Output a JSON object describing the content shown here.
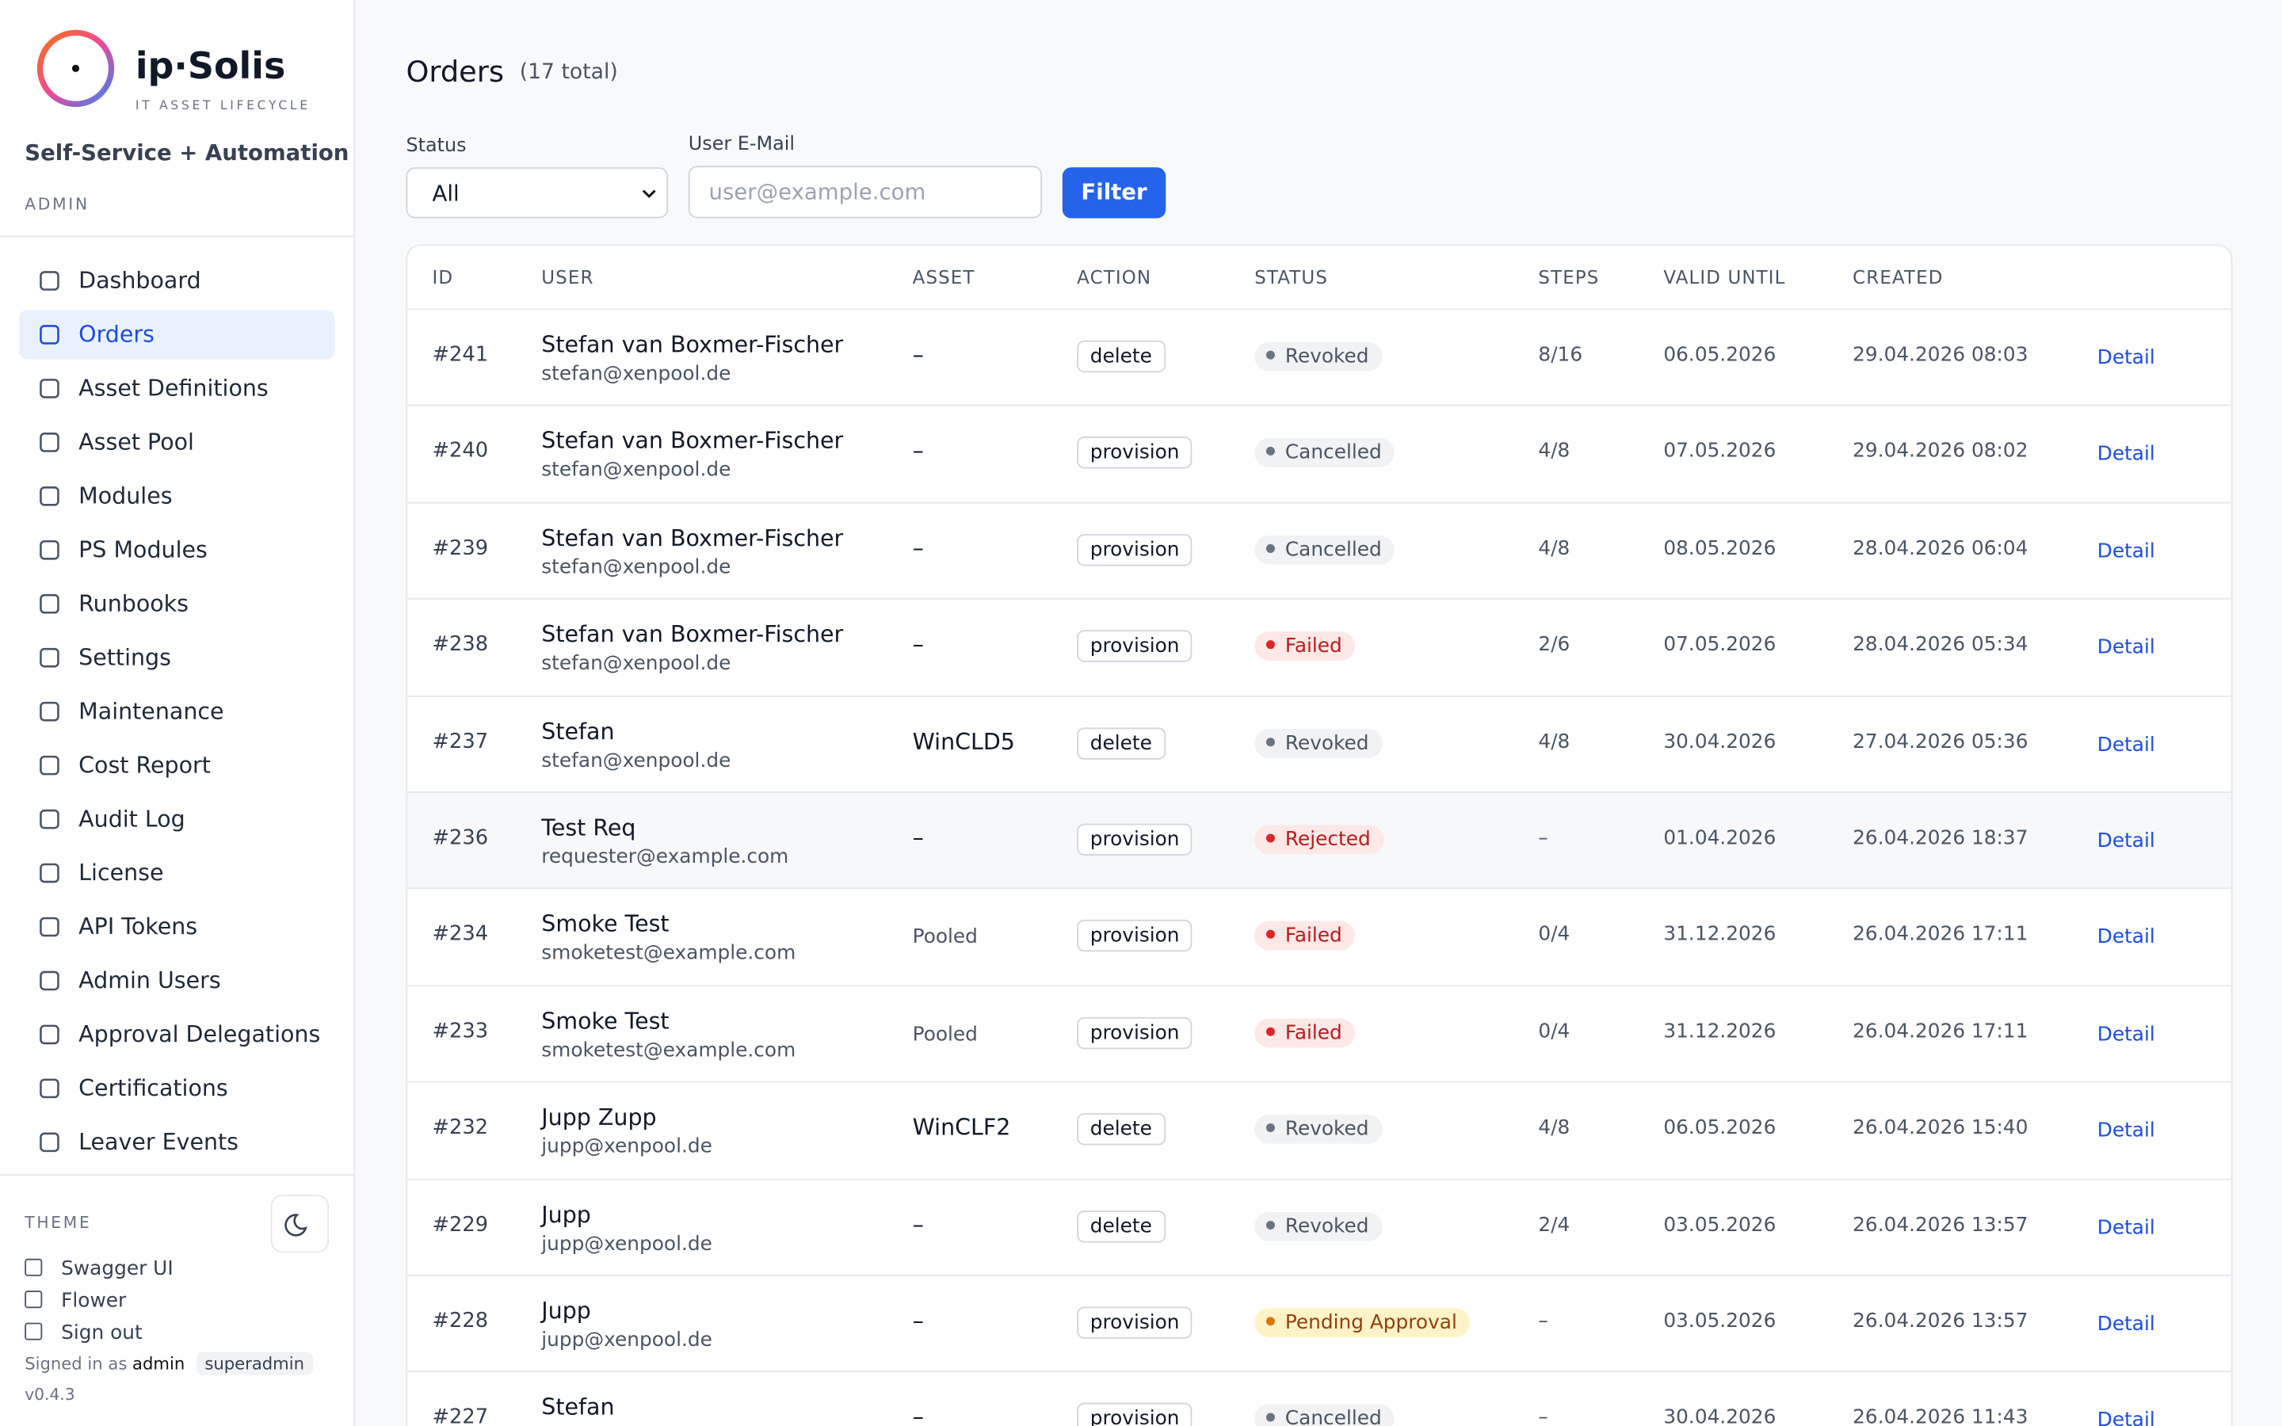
{
  "sidebar": {
    "brand": "ip·Solis",
    "tagline": "IT ASSET LIFECYCLE",
    "subtitle": "Self-Service + Automation",
    "role": "ADMIN",
    "nav": [
      {
        "label": "Dashboard",
        "active": false
      },
      {
        "label": "Orders",
        "active": true
      },
      {
        "label": "Asset Definitions",
        "active": false
      },
      {
        "label": "Asset Pool",
        "active": false
      },
      {
        "label": "Modules",
        "active": false
      },
      {
        "label": "PS Modules",
        "active": false
      },
      {
        "label": "Runbooks",
        "active": false
      },
      {
        "label": "Settings",
        "active": false
      },
      {
        "label": "Maintenance",
        "active": false
      },
      {
        "label": "Cost Report",
        "active": false
      },
      {
        "label": "Audit Log",
        "active": false
      },
      {
        "label": "License",
        "active": false
      },
      {
        "label": "API Tokens",
        "active": false
      },
      {
        "label": "Admin Users",
        "active": false
      },
      {
        "label": "Approval Delegations",
        "active": false
      },
      {
        "label": "Certifications",
        "active": false
      },
      {
        "label": "Leaver Events",
        "active": false
      }
    ],
    "theme_label": "THEME",
    "links": [
      "Swagger UI",
      "Flower",
      "Sign out"
    ],
    "signed_in": "Signed in as",
    "user": "admin",
    "user_role": "superadmin",
    "version": "v0.4.3"
  },
  "header": {
    "title": "Orders",
    "count": "(17 total)"
  },
  "filters": {
    "status_label": "Status",
    "status_value": "All",
    "email_label": "User E-Mail",
    "email_placeholder": "user@example.com",
    "button": "Filter"
  },
  "table": {
    "columns": [
      "ID",
      "USER",
      "ASSET",
      "ACTION",
      "STATUS",
      "STEPS",
      "VALID UNTIL",
      "CREATED"
    ],
    "rows": [
      {
        "id": "#241",
        "name": "Stefan van Boxmer-Fischer",
        "email": "stefan@xenpool.de",
        "asset": "–",
        "asset_muted": false,
        "action": "delete",
        "status": "Revoked",
        "tone": "gray",
        "steps": "8/16",
        "valid": "06.05.2026",
        "created": "29.04.2026 08:03",
        "link": "Detail",
        "highlight": false
      },
      {
        "id": "#240",
        "name": "Stefan van Boxmer-Fischer",
        "email": "stefan@xenpool.de",
        "asset": "–",
        "asset_muted": false,
        "action": "provision",
        "status": "Cancelled",
        "tone": "gray",
        "steps": "4/8",
        "valid": "07.05.2026",
        "created": "29.04.2026 08:02",
        "link": "Detail",
        "highlight": false
      },
      {
        "id": "#239",
        "name": "Stefan van Boxmer-Fischer",
        "email": "stefan@xenpool.de",
        "asset": "–",
        "asset_muted": false,
        "action": "provision",
        "status": "Cancelled",
        "tone": "gray",
        "steps": "4/8",
        "valid": "08.05.2026",
        "created": "28.04.2026 06:04",
        "link": "Detail",
        "highlight": false
      },
      {
        "id": "#238",
        "name": "Stefan van Boxmer-Fischer",
        "email": "stefan@xenpool.de",
        "asset": "–",
        "asset_muted": false,
        "action": "provision",
        "status": "Failed",
        "tone": "red",
        "steps": "2/6",
        "valid": "07.05.2026",
        "created": "28.04.2026 05:34",
        "link": "Detail",
        "highlight": false
      },
      {
        "id": "#237",
        "name": "Stefan",
        "email": "stefan@xenpool.de",
        "asset": "WinCLD5",
        "asset_muted": false,
        "action": "delete",
        "status": "Revoked",
        "tone": "gray",
        "steps": "4/8",
        "valid": "30.04.2026",
        "created": "27.04.2026 05:36",
        "link": "Detail",
        "highlight": false
      },
      {
        "id": "#236",
        "name": "Test Req",
        "email": "requester@example.com",
        "asset": "–",
        "asset_muted": false,
        "action": "provision",
        "status": "Rejected",
        "tone": "red",
        "steps": "–",
        "valid": "01.04.2026",
        "created": "26.04.2026 18:37",
        "link": "Detail",
        "highlight": true
      },
      {
        "id": "#234",
        "name": "Smoke Test",
        "email": "smoketest@example.com",
        "asset": "Pooled",
        "asset_muted": true,
        "action": "provision",
        "status": "Failed",
        "tone": "red",
        "steps": "0/4",
        "valid": "31.12.2026",
        "created": "26.04.2026 17:11",
        "link": "Detail",
        "highlight": false
      },
      {
        "id": "#233",
        "name": "Smoke Test",
        "email": "smoketest@example.com",
        "asset": "Pooled",
        "asset_muted": true,
        "action": "provision",
        "status": "Failed",
        "tone": "red",
        "steps": "0/4",
        "valid": "31.12.2026",
        "created": "26.04.2026 17:11",
        "link": "Detail",
        "highlight": false
      },
      {
        "id": "#232",
        "name": "Jupp Zupp",
        "email": "jupp@xenpool.de",
        "asset": "WinCLF2",
        "asset_muted": false,
        "action": "delete",
        "status": "Revoked",
        "tone": "gray",
        "steps": "4/8",
        "valid": "06.05.2026",
        "created": "26.04.2026 15:40",
        "link": "Detail",
        "highlight": false
      },
      {
        "id": "#229",
        "name": "Jupp",
        "email": "jupp@xenpool.de",
        "asset": "–",
        "asset_muted": false,
        "action": "delete",
        "status": "Revoked",
        "tone": "gray",
        "steps": "2/4",
        "valid": "03.05.2026",
        "created": "26.04.2026 13:57",
        "link": "Detail",
        "highlight": false
      },
      {
        "id": "#228",
        "name": "Jupp",
        "email": "jupp@xenpool.de",
        "asset": "–",
        "asset_muted": false,
        "action": "provision",
        "status": "Pending Approval",
        "tone": "yellow",
        "steps": "–",
        "valid": "03.05.2026",
        "created": "26.04.2026 13:57",
        "link": "Detail",
        "highlight": false
      },
      {
        "id": "#227",
        "name": "Stefan",
        "email": null,
        "asset": "–",
        "asset_muted": false,
        "action": "provision",
        "status": "Cancelled",
        "tone": "gray",
        "steps": "–",
        "valid": "30.04.2026",
        "created": "26.04.2026 11:43",
        "link": "Detail",
        "highlight": false
      }
    ]
  }
}
